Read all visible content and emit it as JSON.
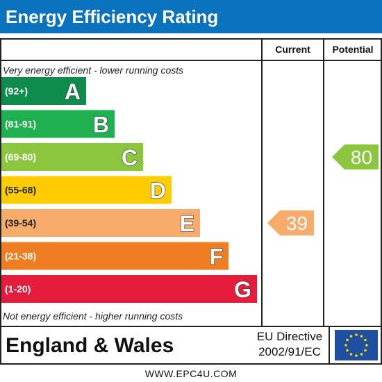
{
  "header": {
    "title": "Energy Efficiency Rating"
  },
  "columns": {
    "current": "Current",
    "potential": "Potential"
  },
  "notes": {
    "top": "Very energy efficient - lower running costs",
    "bottom": "Not energy efficient - higher running costs"
  },
  "footer": {
    "country": "England & Wales",
    "directive_line1": "EU Directive",
    "directive_line2": "2002/91/EC",
    "website": "WWW.EPC4U.COM"
  },
  "chart_data": {
    "type": "bar",
    "title": "Energy Efficiency Rating",
    "bands": [
      {
        "letter": "A",
        "range": "(92+)",
        "min": 92,
        "max": 100,
        "color": "#0d8c4b"
      },
      {
        "letter": "B",
        "range": "(81-91)",
        "min": 81,
        "max": 91,
        "color": "#1fb14f"
      },
      {
        "letter": "C",
        "range": "(69-80)",
        "min": 69,
        "max": 80,
        "color": "#8cc63f"
      },
      {
        "letter": "D",
        "range": "(55-68)",
        "min": 55,
        "max": 68,
        "color": "#ffcc00"
      },
      {
        "letter": "E",
        "range": "(39-54)",
        "min": 39,
        "max": 54,
        "color": "#f7ac6b"
      },
      {
        "letter": "F",
        "range": "(21-38)",
        "min": 21,
        "max": 38,
        "color": "#ef7d22"
      },
      {
        "letter": "G",
        "range": "(1-20)",
        "min": 1,
        "max": 20,
        "color": "#e31d3b"
      }
    ],
    "current": {
      "value": 39,
      "band": "E",
      "color": "#f7ac6b"
    },
    "potential": {
      "value": 80,
      "band": "C",
      "color": "#8cc63f"
    }
  }
}
